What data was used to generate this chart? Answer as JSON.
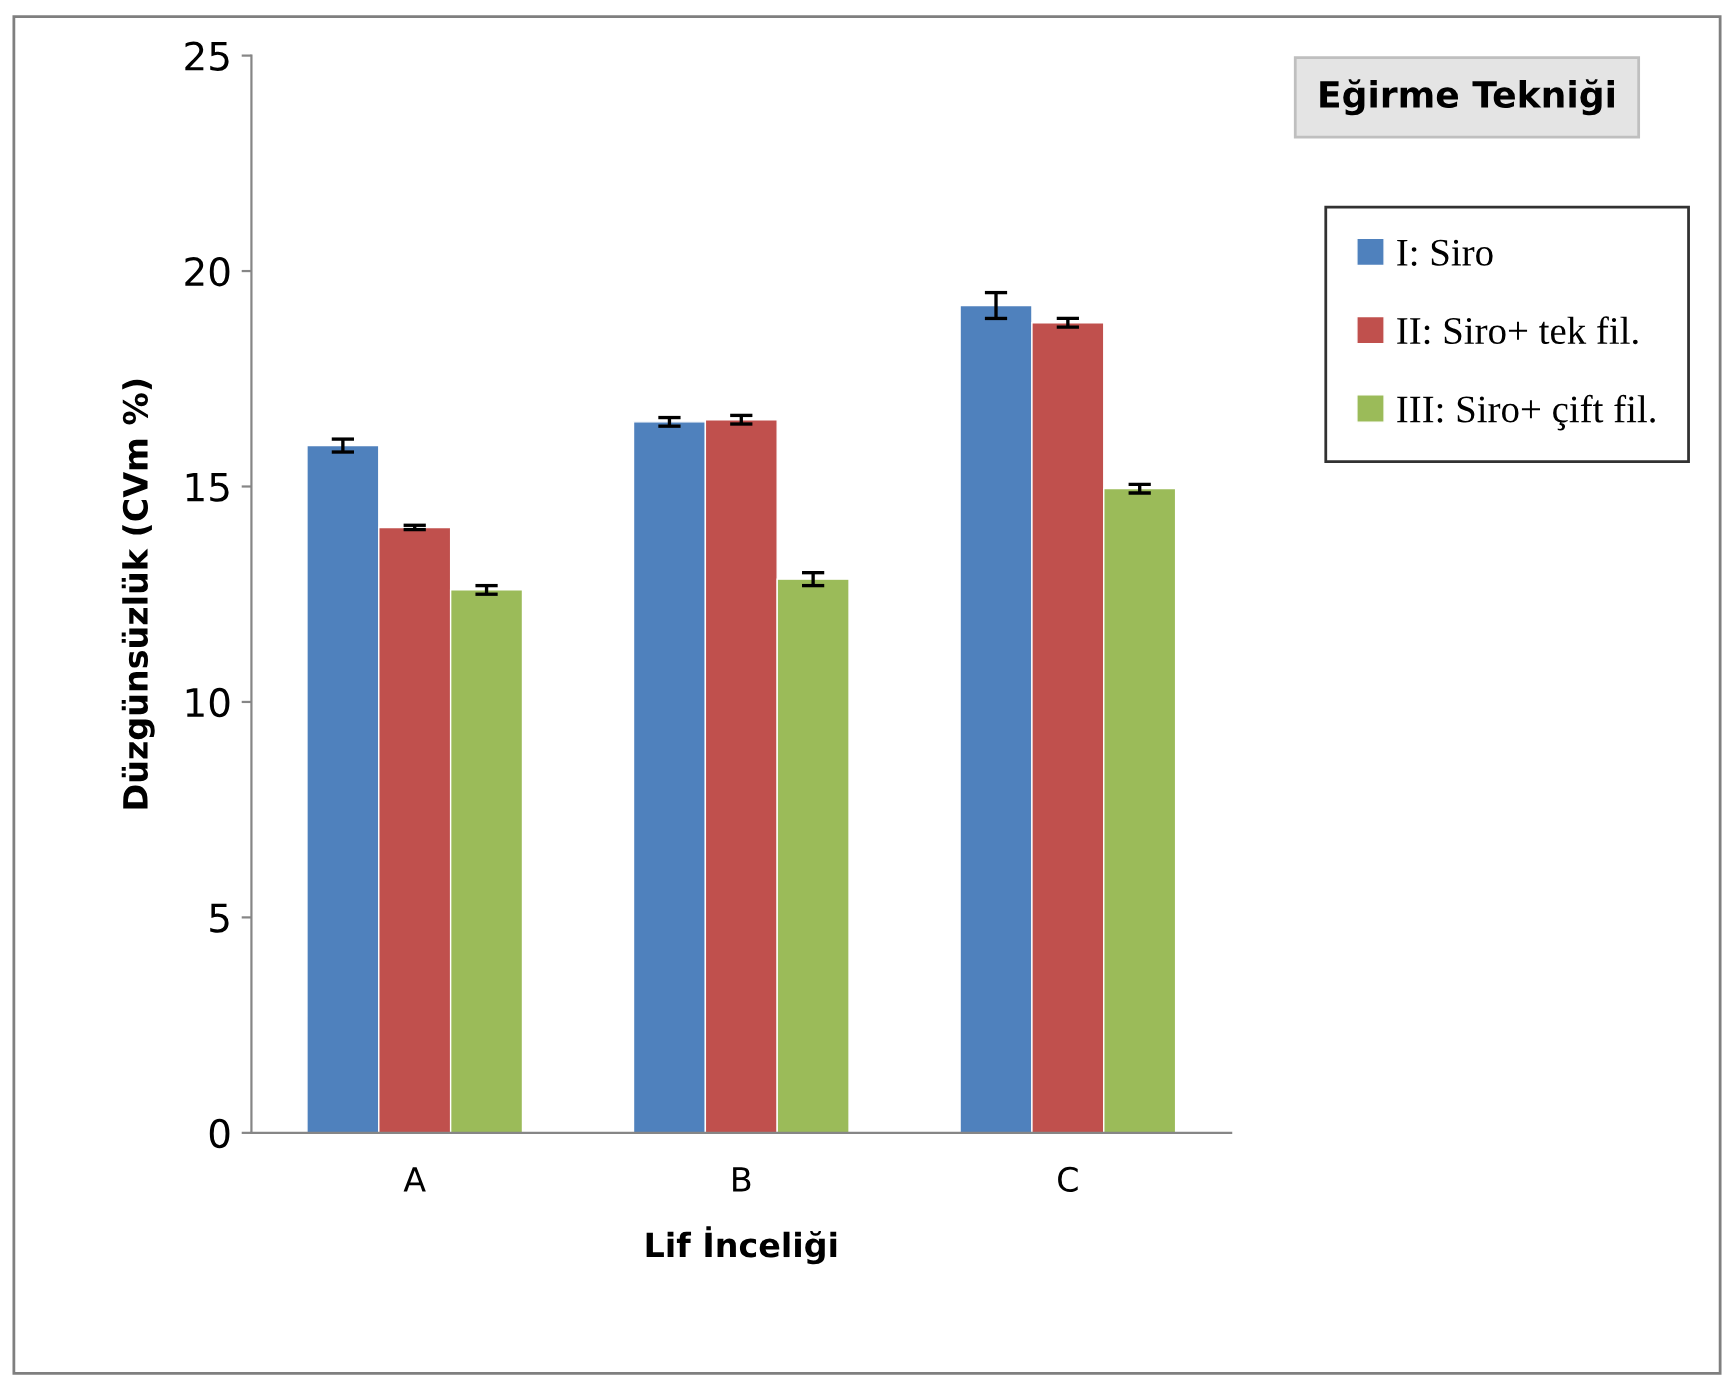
{
  "chart_data": {
    "type": "bar",
    "xlabel": "Lif İnceliği",
    "ylabel": "Düzgünsüzlük (CVm %)",
    "legend_title": "Eğirme Tekniği",
    "categories": [
      "A",
      "B",
      "C"
    ],
    "series": [
      {
        "name": "I: Siro",
        "color": "#4f81bd",
        "values": [
          15.95,
          16.5,
          19.2
        ],
        "errors": [
          0.15,
          0.1,
          0.3
        ]
      },
      {
        "name": "II: Siro+ tek fil.",
        "color": "#c0504d",
        "values": [
          14.05,
          16.55,
          18.8
        ],
        "errors": [
          0.05,
          0.1,
          0.1
        ]
      },
      {
        "name": "III: Siro+ çift fil.",
        "color": "#9bbb59",
        "values": [
          12.6,
          12.85,
          14.95
        ],
        "errors": [
          0.1,
          0.15,
          0.1
        ]
      }
    ],
    "ylim": [
      0,
      25
    ],
    "yticks": [
      0,
      5,
      10,
      15,
      20,
      25
    ],
    "grid": false,
    "legend": "top right"
  }
}
